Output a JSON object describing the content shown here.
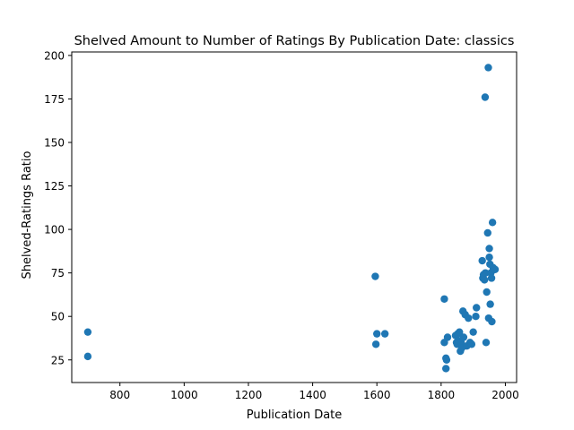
{
  "chart_data": {
    "type": "scatter",
    "title": "Shelved Amount to Number of Ratings By Publication Date: classics",
    "xlabel": "Publication Date",
    "ylabel": "Shelved-Ratings Ratio",
    "xlim": [
      650,
      2035
    ],
    "ylim": [
      12,
      202
    ],
    "xticks": [
      800,
      1000,
      1200,
      1400,
      1600,
      1800,
      2000
    ],
    "yticks": [
      25,
      50,
      75,
      100,
      125,
      150,
      175,
      200
    ],
    "grid": false,
    "marker_color": "#1f77b4",
    "x": [
      700,
      700,
      1595,
      1597,
      1600,
      1625,
      1810,
      1810,
      1815,
      1815,
      1817,
      1820,
      1845,
      1848,
      1850,
      1852,
      1855,
      1857,
      1860,
      1862,
      1865,
      1868,
      1870,
      1875,
      1880,
      1885,
      1890,
      1895,
      1900,
      1908,
      1910,
      1928,
      1930,
      1932,
      1935,
      1937,
      1938,
      1940,
      1942,
      1945,
      1947,
      1948,
      1950,
      1950,
      1952,
      1953,
      1955,
      1957,
      1958,
      1960,
      1962,
      1968
    ],
    "y": [
      41,
      27,
      73,
      34,
      40,
      40,
      35,
      60,
      20,
      26,
      25,
      38,
      39,
      35,
      34,
      40,
      36,
      41,
      30,
      35,
      32,
      53,
      38,
      51,
      33,
      49,
      35,
      34,
      41,
      50,
      55,
      82,
      72,
      74,
      71,
      176,
      75,
      35,
      64,
      98,
      193,
      49,
      84,
      89,
      80,
      57,
      75,
      72,
      47,
      104,
      78,
      77
    ]
  }
}
